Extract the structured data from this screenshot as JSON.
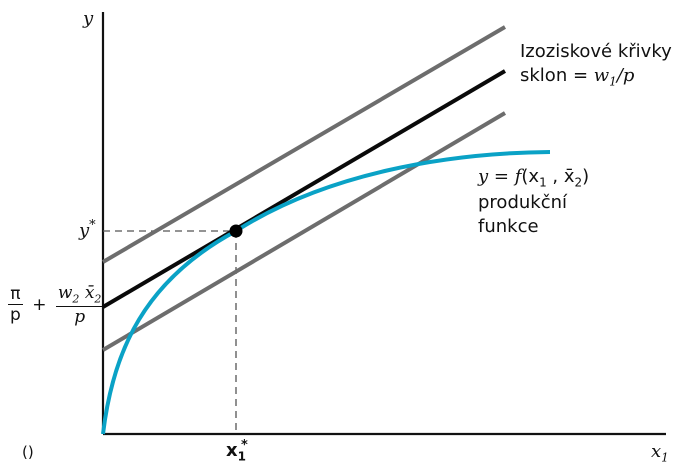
{
  "axes": {
    "y_label": "y",
    "x_label": "x",
    "x_sub": "1"
  },
  "markers": {
    "y_star": "y",
    "y_star_sup": "*",
    "x_star": "x",
    "x_star_sub": "1",
    "x_star_sup": "*"
  },
  "intercept": {
    "pi": "π",
    "p_den": "p",
    "plus": "+",
    "w": "w",
    "w_sub": "2",
    "xbar": "x̄",
    "xbar_sub": "2",
    "p2": "p"
  },
  "isoprofit": {
    "title": "Izoziskové křivky",
    "slope_prefix": "sklon = ",
    "w": "w",
    "w_sub": "1",
    "slash_p": "/p"
  },
  "production": {
    "eq_prefix": "y = ",
    "f": "f",
    "args_open": "(x",
    "arg_sub1": "1",
    "comma": " , ",
    "xbar": "x̄",
    "xbar_sub": "2",
    "args_close": ")",
    "line2": "produkční",
    "line3": "funkce"
  },
  "footer": {
    "caption": "()"
  },
  "colors": {
    "axis": "#111111",
    "iso_gray": "#6d6d6d",
    "iso_black": "#0a0a0a",
    "production": "#0aa2c6",
    "guide": "#555555"
  }
}
